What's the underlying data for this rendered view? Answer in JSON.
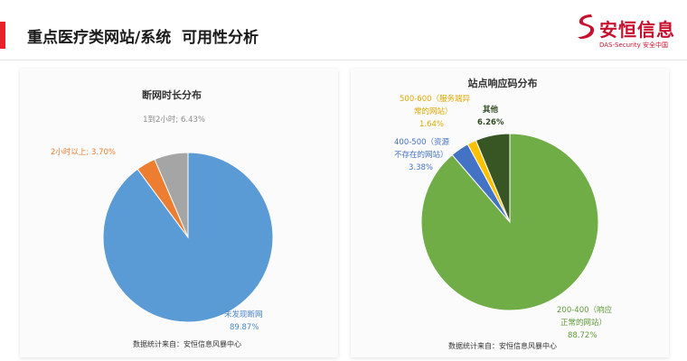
{
  "header": {
    "title": "重点医疗类网站/系统  可用性分析"
  },
  "logo": {
    "name": "安恒信息",
    "subtitle": "DAS-Security 安全中国"
  },
  "colors": {
    "accent": "#e8202a",
    "brand": "#c8102e"
  },
  "chart_data": [
    {
      "type": "pie",
      "title": "断网时长分布",
      "slices": [
        {
          "label": "未发现断网",
          "value": 89.87,
          "value_label": "89.87%",
          "color": "#5b9bd5",
          "label_color": "#4a86c8"
        },
        {
          "label": "2小时以上",
          "value": 3.7,
          "value_label": "3.70%",
          "color": "#ed7d31",
          "label_color": "#ed7d31"
        },
        {
          "label": "1到2小时",
          "value": 6.43,
          "value_label": "6.43%",
          "color": "#a5a5a5",
          "label_color": "#8c8c8c"
        }
      ],
      "source": "数据统计来自：安恒信息风暴中心"
    },
    {
      "type": "pie",
      "title": "站点响应码分布",
      "slices": [
        {
          "label": "200-400（响应正常的网站）",
          "value": 88.72,
          "value_label": "88.72%",
          "color": "#70ad47",
          "label_color": "#5e9a38"
        },
        {
          "label": "400-500（资源不存在的网站）",
          "value": 3.38,
          "value_label": "3.38%",
          "color": "#4472c4",
          "label_color": "#4472c4"
        },
        {
          "label": "500-600（服务端异常的网站）",
          "value": 1.64,
          "value_label": "1.64%",
          "color": "#ffc000",
          "label_color": "#e0a800"
        },
        {
          "label": "其他",
          "value": 6.26,
          "value_label": "6.26%",
          "color": "#375623",
          "label_color": "#2e4a1e"
        }
      ],
      "source": "数据统计来自：安恒信息风暴中心"
    }
  ]
}
